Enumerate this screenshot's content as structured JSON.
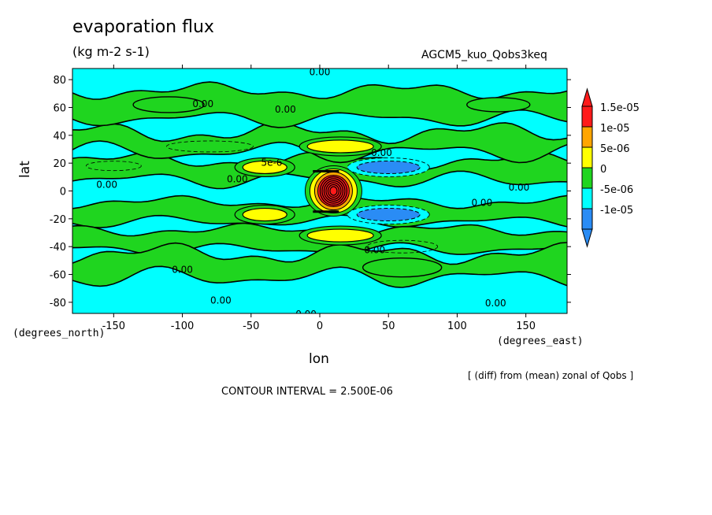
{
  "title": "evaporation flux",
  "units": "(kg m-2 s-1)",
  "model_label": "AGCM5_kuo_Qobs3keq",
  "footnote": "[ (diff) from (mean) zonal of Qobs ]",
  "contour_interval": "CONTOUR INTERVAL = 2.500E-06",
  "chart_data": {
    "type": "heatmap",
    "xlabel": "lon",
    "ylabel": "lat",
    "x_unit_label": "(degrees_east)",
    "y_unit_label": "(degrees_north)",
    "xlim": [
      -180,
      180
    ],
    "ylim": [
      -88,
      88
    ],
    "x_ticks": [
      -150,
      -100,
      -50,
      0,
      50,
      100,
      150
    ],
    "y_ticks": [
      -80,
      -60,
      -40,
      -20,
      0,
      20,
      40,
      60,
      80
    ],
    "colorbar": {
      "levels": [
        -1e-05,
        -5e-06,
        0,
        5e-06,
        1e-05,
        1.5e-05
      ],
      "labels": [
        "-1e-05",
        "-5e-06",
        "0",
        "5e-06",
        "1e-05",
        "1.5e-05"
      ],
      "colors": [
        "#2a8cf5",
        "#00ffff",
        "#1fd51f",
        "#ffff00",
        "#ffa500",
        "#ff1a1a"
      ],
      "extend": "both"
    },
    "background_band_latitudes": {
      "positive_bands": [
        [
          -22,
          -8
        ],
        [
          8,
          22
        ],
        [
          28,
          42
        ],
        [
          -42,
          -28
        ],
        [
          52,
          72
        ],
        [
          -62,
          -45
        ]
      ],
      "negative_bands": [
        [
          -40,
          -22
        ],
        [
          22,
          40
        ],
        [
          -85,
          -65
        ],
        [
          72,
          86
        ]
      ]
    },
    "features": [
      {
        "kind": "core",
        "lon": 10,
        "lat": 0,
        "value": 1.6e-05
      },
      {
        "kind": "high",
        "lon": 15,
        "lat": 32,
        "value": 6e-06
      },
      {
        "kind": "high",
        "lon": 15,
        "lat": -32,
        "value": 6e-06
      },
      {
        "kind": "high",
        "lon": -40,
        "lat": 17,
        "value": 6e-06
      },
      {
        "kind": "high",
        "lon": -40,
        "lat": -17,
        "value": 6e-06
      },
      {
        "kind": "low",
        "lon": 50,
        "lat": 17,
        "value": -8e-06
      },
      {
        "kind": "low",
        "lon": 50,
        "lat": -17,
        "value": -8e-06
      }
    ],
    "contour_labels": [
      {
        "text": "0.00",
        "lon": 0,
        "lat": 86
      },
      {
        "text": "0.00",
        "lon": -85,
        "lat": 63
      },
      {
        "text": "0.00",
        "lon": -25,
        "lat": 59
      },
      {
        "text": "5e-6",
        "lon": -35,
        "lat": 21
      },
      {
        "text": "0.00",
        "lon": -60,
        "lat": 9
      },
      {
        "text": "0.00",
        "lon": -155,
        "lat": 5
      },
      {
        "text": "0.00",
        "lon": 45,
        "lat": 28
      },
      {
        "text": "0.00",
        "lon": 145,
        "lat": 3
      },
      {
        "text": "0.00",
        "lon": 118,
        "lat": -8
      },
      {
        "text": "0.00",
        "lon": 40,
        "lat": -42
      },
      {
        "text": "0.00",
        "lon": -100,
        "lat": -56
      },
      {
        "text": "0.00",
        "lon": -72,
        "lat": -78
      },
      {
        "text": "0.00",
        "lon": 128,
        "lat": -80
      },
      {
        "text": "0.00",
        "lon": -10,
        "lat": -88
      }
    ]
  }
}
